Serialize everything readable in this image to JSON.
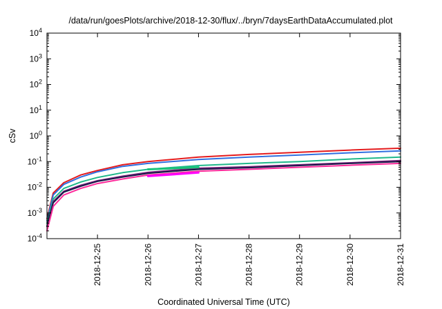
{
  "chart_data": {
    "type": "line",
    "title": "/data/run/goesPlots/archive/2018-12-30/flux/../bryn/7daysEarthDataAccumulated.plot",
    "xlabel": "Coordinated Universal Time (UTC)",
    "ylabel": "cSv",
    "y_scale": "log",
    "ylim": [
      0.0001,
      10000
    ],
    "xlim": [
      "2018-12-24",
      "2018-12-31"
    ],
    "x_ticks": [
      "2018-12-25",
      "2018-12-26",
      "2018-12-27",
      "2018-12-28",
      "2018-12-29",
      "2018-12-30",
      "2018-12-31"
    ],
    "y_ticks": [
      {
        "value": 0.0001,
        "base": "10",
        "exp": "-4"
      },
      {
        "value": 0.001,
        "base": "10",
        "exp": "-3"
      },
      {
        "value": 0.01,
        "base": "10",
        "exp": "-2"
      },
      {
        "value": 0.1,
        "base": "10",
        "exp": "-1"
      },
      {
        "value": 1,
        "base": "10",
        "exp": "0"
      },
      {
        "value": 10,
        "base": "10",
        "exp": "1"
      },
      {
        "value": 100,
        "base": "10",
        "exp": "2"
      },
      {
        "value": 1000,
        "base": "10",
        "exp": "3"
      },
      {
        "value": 10000,
        "base": "10",
        "exp": "4"
      }
    ],
    "grid": false,
    "series": [
      {
        "color": "#e41a1c",
        "x": [
          "2018-12-24T00:00",
          "2018-12-24T03:00",
          "2018-12-24T08:00",
          "2018-12-24T16:00",
          "2018-12-25T00:00",
          "2018-12-25T12:00",
          "2018-12-26T00:00",
          "2018-12-27T00:00",
          "2018-12-28T00:00",
          "2018-12-29T00:00",
          "2018-12-30T00:00",
          "2018-12-31T00:00"
        ],
        "values": [
          0.0006,
          0.006,
          0.015,
          0.03,
          0.045,
          0.075,
          0.1,
          0.15,
          0.19,
          0.23,
          0.28,
          0.33
        ]
      },
      {
        "color": "#2f6fe0",
        "x": [
          "2018-12-24T00:00",
          "2018-12-24T03:00",
          "2018-12-24T08:00",
          "2018-12-24T16:00",
          "2018-12-25T00:00",
          "2018-12-25T12:00",
          "2018-12-26T00:00",
          "2018-12-27T00:00",
          "2018-12-28T00:00",
          "2018-12-29T00:00",
          "2018-12-30T00:00",
          "2018-12-31T00:00"
        ],
        "values": [
          0.0005,
          0.005,
          0.013,
          0.025,
          0.04,
          0.065,
          0.085,
          0.12,
          0.15,
          0.18,
          0.22,
          0.26
        ]
      },
      {
        "color": "#1fb88a",
        "x": [
          "2018-12-24T00:00",
          "2018-12-24T03:00",
          "2018-12-24T08:00",
          "2018-12-24T16:00",
          "2018-12-25T00:00",
          "2018-12-25T12:00",
          "2018-12-26T00:00",
          "2018-12-27T00:00",
          "2018-12-28T00:00",
          "2018-12-29T00:00",
          "2018-12-30T00:00",
          "2018-12-31T00:00"
        ],
        "values": [
          0.0004,
          0.0035,
          0.009,
          0.016,
          0.024,
          0.037,
          0.05,
          0.07,
          0.085,
          0.1,
          0.125,
          0.15
        ]
      },
      {
        "color": "#7a1f7a",
        "x": [
          "2018-12-24T00:00",
          "2018-12-24T03:00",
          "2018-12-24T08:00",
          "2018-12-24T16:00",
          "2018-12-25T00:00",
          "2018-12-25T12:00",
          "2018-12-26T00:00",
          "2018-12-27T00:00",
          "2018-12-28T00:00",
          "2018-12-29T00:00",
          "2018-12-30T00:00",
          "2018-12-31T00:00"
        ],
        "values": [
          0.0003,
          0.0028,
          0.007,
          0.012,
          0.018,
          0.027,
          0.038,
          0.055,
          0.063,
          0.075,
          0.09,
          0.11
        ]
      },
      {
        "color": "#1a1a4a",
        "x": [
          "2018-12-24T00:00",
          "2018-12-24T03:00",
          "2018-12-24T08:00",
          "2018-12-24T16:00",
          "2018-12-25T00:00",
          "2018-12-25T12:00",
          "2018-12-26T00:00",
          "2018-12-27T00:00",
          "2018-12-28T00:00",
          "2018-12-29T00:00",
          "2018-12-30T00:00",
          "2018-12-31T00:00"
        ],
        "values": [
          0.0003,
          0.0025,
          0.0065,
          0.011,
          0.017,
          0.025,
          0.035,
          0.05,
          0.058,
          0.07,
          0.085,
          0.1
        ]
      },
      {
        "color": "#ff2a9a",
        "x": [
          "2018-12-24T00:00",
          "2018-12-24T03:00",
          "2018-12-24T08:00",
          "2018-12-24T16:00",
          "2018-12-25T00:00",
          "2018-12-25T12:00",
          "2018-12-26T00:00",
          "2018-12-27T00:00",
          "2018-12-28T00:00",
          "2018-12-29T00:00",
          "2018-12-30T00:00",
          "2018-12-31T00:00"
        ],
        "values": [
          0.0002,
          0.0018,
          0.005,
          0.009,
          0.014,
          0.021,
          0.03,
          0.042,
          0.05,
          0.06,
          0.072,
          0.085
        ]
      },
      {
        "color": "#19c27a",
        "x": [
          "2018-12-26T00:00",
          "2018-12-27T00:00"
        ],
        "values": [
          0.05,
          0.06
        ]
      },
      {
        "color": "#ff00ff",
        "x": [
          "2018-12-26T00:00",
          "2018-12-27T00:00"
        ],
        "values": [
          0.027,
          0.037
        ]
      }
    ]
  }
}
